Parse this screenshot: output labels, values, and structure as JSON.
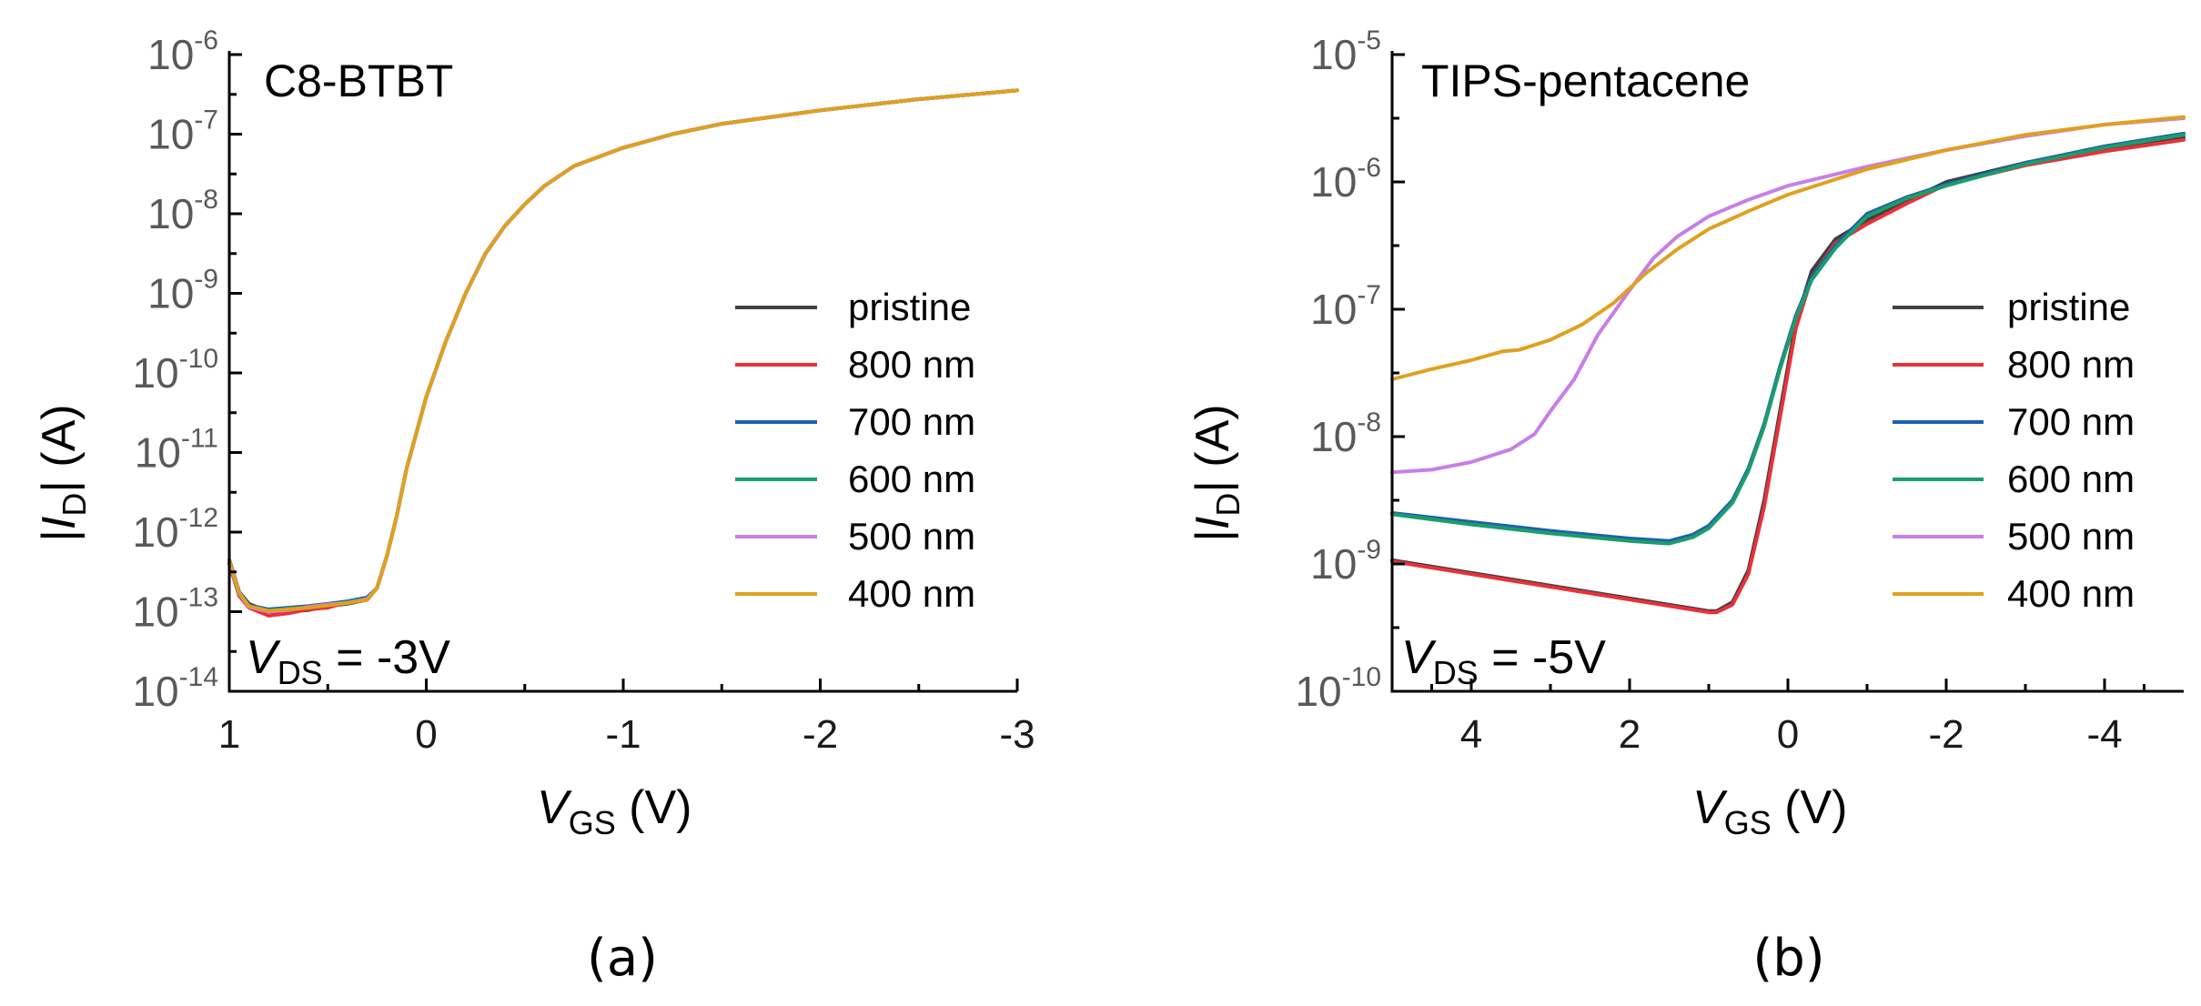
{
  "chart_data": [
    {
      "type": "line",
      "panel": "(a)",
      "title": "C8-BTBT",
      "xlabel_main": "V",
      "xlabel_sub": "GS",
      "xlabel_unit": " (V)",
      "ylabel_pre": "|",
      "ylabel_main": "I",
      "ylabel_sub": "D",
      "ylabel_post": "| (A)",
      "annotation_main": "V",
      "annotation_sub": "DS",
      "annotation_rest": " = -3V",
      "xlim": [
        1,
        -3
      ],
      "ylim_log10": [
        -14,
        -6
      ],
      "xticks": [
        1,
        0,
        -1,
        -2,
        -3
      ],
      "xtick_labels": [
        "1",
        "0",
        "-1",
        "-2",
        "-3"
      ],
      "yticks_log10": [
        -6,
        -7,
        -8,
        -9,
        -10,
        -11,
        -12,
        -13,
        -14
      ],
      "ytick_base": "10",
      "legend_position": "right",
      "series": [
        {
          "name": "pristine",
          "color": "#404040",
          "x": [
            1.0,
            0.95,
            0.9,
            0.8,
            0.7,
            0.6,
            0.5,
            0.4,
            0.3,
            0.25,
            0.2,
            0.15,
            0.1,
            0.0,
            -0.1,
            -0.2,
            -0.3,
            -0.4,
            -0.5,
            -0.6,
            -0.75,
            -1.0,
            -1.25,
            -1.5,
            -2.0,
            -2.5,
            -3.0
          ],
          "y": [
            -12.35,
            -12.75,
            -12.9,
            -13.0,
            -13.0,
            -12.98,
            -12.93,
            -12.9,
            -12.85,
            -12.7,
            -12.3,
            -11.8,
            -11.2,
            -10.3,
            -9.6,
            -9.0,
            -8.5,
            -8.15,
            -7.88,
            -7.65,
            -7.4,
            -7.17,
            -7.0,
            -6.87,
            -6.7,
            -6.56,
            -6.45
          ]
        },
        {
          "name": "800 nm",
          "color": "#e8313a",
          "x": [
            1.0,
            0.95,
            0.9,
            0.8,
            0.7,
            0.6,
            0.5,
            0.4,
            0.3,
            0.25,
            0.2,
            0.15,
            0.1,
            0.0,
            -0.1,
            -0.2,
            -0.3,
            -0.4,
            -0.5,
            -0.6,
            -0.75,
            -1.0,
            -1.25,
            -1.5,
            -2.0,
            -2.5,
            -3.0
          ],
          "y": [
            -12.4,
            -12.8,
            -12.95,
            -13.05,
            -13.02,
            -12.97,
            -12.95,
            -12.88,
            -12.85,
            -12.7,
            -12.3,
            -11.8,
            -11.2,
            -10.3,
            -9.6,
            -9.0,
            -8.5,
            -8.15,
            -7.88,
            -7.65,
            -7.4,
            -7.17,
            -7.0,
            -6.87,
            -6.7,
            -6.56,
            -6.45
          ]
        },
        {
          "name": "700 nm",
          "color": "#1f5fb0",
          "x": [
            1.0,
            0.95,
            0.9,
            0.8,
            0.7,
            0.6,
            0.5,
            0.4,
            0.3,
            0.25,
            0.2,
            0.15,
            0.1,
            0.0,
            -0.1,
            -0.2,
            -0.3,
            -0.4,
            -0.5,
            -0.6,
            -0.75,
            -1.0,
            -1.25,
            -1.5,
            -2.0,
            -2.5,
            -3.0
          ],
          "y": [
            -12.35,
            -12.75,
            -12.92,
            -12.97,
            -12.95,
            -12.93,
            -12.9,
            -12.87,
            -12.82,
            -12.7,
            -12.3,
            -11.8,
            -11.2,
            -10.3,
            -9.6,
            -9.0,
            -8.5,
            -8.15,
            -7.88,
            -7.65,
            -7.4,
            -7.17,
            -7.0,
            -6.87,
            -6.7,
            -6.56,
            -6.45
          ]
        },
        {
          "name": "600 nm",
          "color": "#1a9e6a",
          "x": [
            1.0,
            0.95,
            0.9,
            0.8,
            0.7,
            0.6,
            0.5,
            0.4,
            0.3,
            0.25,
            0.2,
            0.15,
            0.1,
            0.0,
            -0.1,
            -0.2,
            -0.3,
            -0.4,
            -0.5,
            -0.6,
            -0.75,
            -1.0,
            -1.25,
            -1.5,
            -2.0,
            -2.5,
            -3.0
          ],
          "y": [
            -12.38,
            -12.78,
            -12.93,
            -12.99,
            -12.96,
            -12.95,
            -12.92,
            -12.88,
            -12.84,
            -12.7,
            -12.3,
            -11.8,
            -11.2,
            -10.3,
            -9.6,
            -9.0,
            -8.5,
            -8.15,
            -7.88,
            -7.65,
            -7.4,
            -7.17,
            -7.0,
            -6.87,
            -6.7,
            -6.56,
            -6.45
          ]
        },
        {
          "name": "500 nm",
          "color": "#c77ee8",
          "x": [
            1.0,
            0.95,
            0.9,
            0.8,
            0.7,
            0.6,
            0.5,
            0.4,
            0.3,
            0.25,
            0.2,
            0.15,
            0.1,
            0.0,
            -0.1,
            -0.2,
            -0.3,
            -0.4,
            -0.5,
            -0.6,
            -0.75,
            -1.0,
            -1.25,
            -1.5,
            -2.0,
            -2.5,
            -3.0
          ],
          "y": [
            -12.37,
            -12.77,
            -12.94,
            -13.0,
            -12.98,
            -12.94,
            -12.91,
            -12.89,
            -12.84,
            -12.7,
            -12.3,
            -11.8,
            -11.2,
            -10.3,
            -9.6,
            -9.0,
            -8.5,
            -8.15,
            -7.88,
            -7.65,
            -7.4,
            -7.17,
            -7.0,
            -6.87,
            -6.7,
            -6.56,
            -6.45
          ]
        },
        {
          "name": "400 nm",
          "color": "#e0a020",
          "x": [
            1.0,
            0.95,
            0.9,
            0.8,
            0.7,
            0.6,
            0.5,
            0.4,
            0.3,
            0.25,
            0.2,
            0.15,
            0.1,
            0.0,
            -0.1,
            -0.2,
            -0.3,
            -0.4,
            -0.5,
            -0.6,
            -0.75,
            -1.0,
            -1.25,
            -1.5,
            -2.0,
            -2.5,
            -3.0
          ],
          "y": [
            -12.36,
            -12.76,
            -12.93,
            -12.99,
            -12.97,
            -12.95,
            -12.92,
            -12.89,
            -12.85,
            -12.7,
            -12.3,
            -11.8,
            -11.2,
            -10.3,
            -9.6,
            -9.0,
            -8.5,
            -8.15,
            -7.88,
            -7.65,
            -7.4,
            -7.17,
            -7.0,
            -6.87,
            -6.7,
            -6.56,
            -6.45
          ]
        }
      ]
    },
    {
      "type": "line",
      "panel": "(b)",
      "title": "TIPS-pentacene",
      "xlabel_main": "V",
      "xlabel_sub": "GS",
      "xlabel_unit": " (V)",
      "ylabel_pre": "|",
      "ylabel_main": "I",
      "ylabel_sub": "D",
      "ylabel_post": "| (A)",
      "annotation_main": "V",
      "annotation_sub": "DS",
      "annotation_rest": " = -5V",
      "xlim": [
        5,
        -5
      ],
      "ylim_log10": [
        -10,
        -5
      ],
      "xticks": [
        4,
        2,
        0,
        -2,
        -4
      ],
      "xtick_labels": [
        "4",
        "2",
        "0",
        "-2",
        "-4"
      ],
      "yticks_log10": [
        -5,
        -6,
        -7,
        -8,
        -9,
        -10
      ],
      "ytick_base": "10",
      "legend_position": "right",
      "series": [
        {
          "name": "pristine",
          "color": "#404040",
          "x": [
            5,
            4,
            3,
            2,
            1.5,
            1.2,
            1.0,
            0.9,
            0.7,
            0.5,
            0.3,
            0.1,
            -0.1,
            -0.3,
            -0.6,
            -1.0,
            -1.5,
            -2.0,
            -3.0,
            -4.0,
            -5.0
          ],
          "y": [
            -8.97,
            -9.07,
            -9.17,
            -9.27,
            -9.32,
            -9.35,
            -9.37,
            -9.37,
            -9.3,
            -9.05,
            -8.5,
            -7.8,
            -7.1,
            -6.7,
            -6.45,
            -6.3,
            -6.15,
            -6.0,
            -5.85,
            -5.74,
            -5.65
          ]
        },
        {
          "name": "800 nm",
          "color": "#e8313a",
          "x": [
            5,
            4,
            3,
            2,
            1.5,
            1.2,
            1.0,
            0.9,
            0.7,
            0.5,
            0.3,
            0.1,
            -0.1,
            -0.3,
            -0.6,
            -1.0,
            -1.5,
            -2.0,
            -3.0,
            -4.0,
            -5.0
          ],
          "y": [
            -8.98,
            -9.08,
            -9.18,
            -9.28,
            -9.33,
            -9.36,
            -9.38,
            -9.38,
            -9.32,
            -9.08,
            -8.55,
            -7.85,
            -7.15,
            -6.75,
            -6.48,
            -6.33,
            -6.17,
            -6.02,
            -5.87,
            -5.76,
            -5.67
          ]
        },
        {
          "name": "700 nm",
          "color": "#1f5fb0",
          "x": [
            5,
            4,
            3,
            2,
            1.5,
            1.2,
            1.0,
            0.7,
            0.5,
            0.3,
            0.1,
            -0.1,
            -0.3,
            -0.6,
            -1.0,
            -1.5,
            -2.0,
            -3.0,
            -4.0,
            -5.0
          ],
          "y": [
            -8.6,
            -8.67,
            -8.74,
            -8.8,
            -8.82,
            -8.77,
            -8.7,
            -8.5,
            -8.25,
            -7.9,
            -7.45,
            -7.05,
            -6.75,
            -6.5,
            -6.25,
            -6.12,
            -6.02,
            -5.85,
            -5.72,
            -5.62
          ]
        },
        {
          "name": "600 nm",
          "color": "#1a9e6a",
          "x": [
            5,
            4,
            3,
            2,
            1.5,
            1.2,
            1.0,
            0.7,
            0.5,
            0.3,
            0.1,
            -0.1,
            -0.3,
            -0.6,
            -1.0,
            -1.5,
            -2.0,
            -3.0,
            -4.0,
            -5.0
          ],
          "y": [
            -8.61,
            -8.69,
            -8.76,
            -8.82,
            -8.84,
            -8.79,
            -8.72,
            -8.52,
            -8.27,
            -7.92,
            -7.47,
            -7.07,
            -6.77,
            -6.52,
            -6.27,
            -6.13,
            -6.03,
            -5.86,
            -5.73,
            -5.63
          ]
        },
        {
          "name": "500 nm",
          "color": "#c77ee8",
          "x": [
            5,
            4.5,
            4,
            3.5,
            3.2,
            3.0,
            2.7,
            2.4,
            2.0,
            1.7,
            1.4,
            1.0,
            0.5,
            0.0,
            -1.0,
            -2.0,
            -3.0,
            -4.0,
            -5.0
          ],
          "y": [
            -8.28,
            -8.26,
            -8.2,
            -8.1,
            -7.98,
            -7.8,
            -7.55,
            -7.2,
            -6.85,
            -6.6,
            -6.43,
            -6.27,
            -6.14,
            -6.03,
            -5.88,
            -5.75,
            -5.64,
            -5.55,
            -5.5
          ]
        },
        {
          "name": "400 nm",
          "color": "#e0a020",
          "x": [
            5,
            4.5,
            4,
            3.6,
            3.4,
            3.0,
            2.6,
            2.2,
            1.8,
            1.4,
            1.0,
            0.5,
            0.0,
            -0.5,
            -1.0,
            -2.0,
            -3.0,
            -4.0,
            -5.0
          ],
          "y": [
            -7.55,
            -7.47,
            -7.4,
            -7.33,
            -7.32,
            -7.24,
            -7.12,
            -6.95,
            -6.72,
            -6.53,
            -6.37,
            -6.23,
            -6.1,
            -6.0,
            -5.9,
            -5.75,
            -5.63,
            -5.55,
            -5.49
          ]
        }
      ]
    }
  ]
}
